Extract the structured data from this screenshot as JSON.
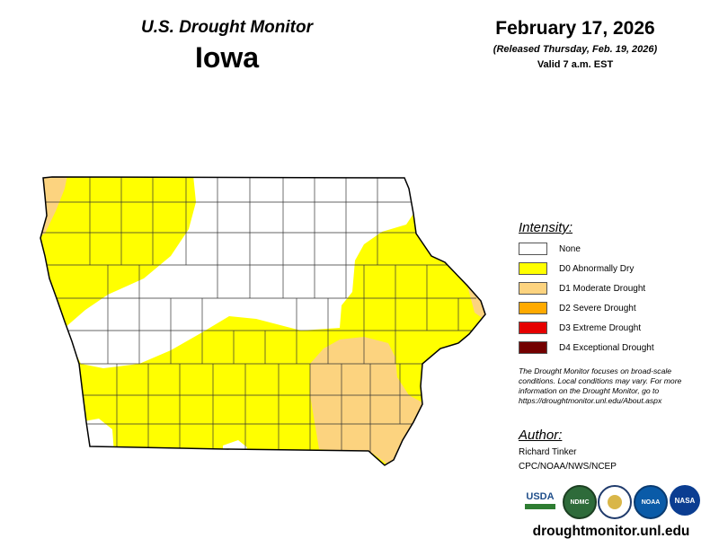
{
  "header": {
    "monitor_title": "U.S. Drought Monitor",
    "state": "Iowa",
    "date": "February 17, 2026",
    "released": "(Released Thursday, Feb. 19, 2026)",
    "valid": "Valid 7 a.m. EST"
  },
  "legend": {
    "title": "Intensity:",
    "items": [
      {
        "label": "None",
        "color": "#ffffff"
      },
      {
        "label": "D0 Abnormally Dry",
        "color": "#ffff00"
      },
      {
        "label": "D1 Moderate Drought",
        "color": "#fcd37f"
      },
      {
        "label": "D2 Severe Drought",
        "color": "#ffaa00"
      },
      {
        "label": "D3 Extreme Drought",
        "color": "#e60000"
      },
      {
        "label": "D4 Exceptional Drought",
        "color": "#730000"
      }
    ]
  },
  "note": "The Drought Monitor focuses on broad-scale conditions. Local conditions may vary. For more information on the Drought Monitor, go to https://droughtmonitor.unl.edu/About.aspx",
  "author": {
    "title": "Author:",
    "name": "Richard Tinker",
    "org": "CPC/NOAA/NWS/NCEP"
  },
  "logos": [
    {
      "name": "usda-logo",
      "text": "USDA"
    },
    {
      "name": "ndmc-logo",
      "text": "NDMC"
    },
    {
      "name": "doc-logo",
      "text": ""
    },
    {
      "name": "noaa-logo",
      "text": "NOAA"
    },
    {
      "name": "nasa-logo",
      "text": "NASA"
    }
  ],
  "website": "droughtmonitor.unl.edu"
}
